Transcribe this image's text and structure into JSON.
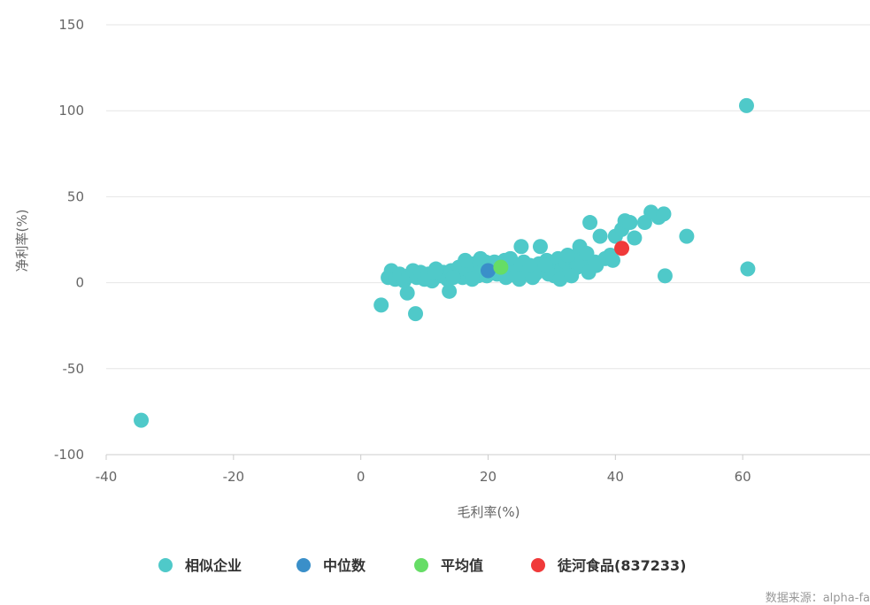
{
  "chart_data": {
    "type": "scatter",
    "xlabel": "毛利率(%)",
    "ylabel": "净利率(%)",
    "xlim": [
      -40,
      80
    ],
    "ylim": [
      -100,
      150
    ],
    "x_ticks": [
      -40,
      -20,
      0,
      20,
      40,
      60
    ],
    "y_ticks": [
      -100,
      -50,
      0,
      50,
      100,
      150
    ],
    "x_tick_labels": [
      "-40",
      "-20",
      "0",
      "20",
      "40",
      "60"
    ],
    "y_tick_labels": [
      "-100",
      "-50",
      "0",
      "50",
      "100",
      "150"
    ],
    "grid": "horizontal",
    "legend_position": "bottom",
    "series": [
      {
        "name": "相似企业",
        "color": "#4fc9c9",
        "points": [
          [
            -34.5,
            -80
          ],
          [
            3.2,
            -13
          ],
          [
            7.3,
            -6
          ],
          [
            8.6,
            -18
          ],
          [
            13.9,
            -5
          ],
          [
            4.3,
            3
          ],
          [
            4.8,
            7
          ],
          [
            5.4,
            2
          ],
          [
            6.1,
            5
          ],
          [
            6.8,
            1
          ],
          [
            7.5,
            4
          ],
          [
            8.2,
            7
          ],
          [
            8.8,
            3
          ],
          [
            9.4,
            6
          ],
          [
            10.0,
            2
          ],
          [
            10.6,
            5
          ],
          [
            11.2,
            1
          ],
          [
            11.8,
            8
          ],
          [
            12.4,
            4
          ],
          [
            13.0,
            6
          ],
          [
            13.6,
            2
          ],
          [
            14.2,
            7
          ],
          [
            14.8,
            5
          ],
          [
            15.4,
            9
          ],
          [
            16.0,
            3
          ],
          [
            16.6,
            8
          ],
          [
            17.2,
            6
          ],
          [
            17.8,
            11
          ],
          [
            18.4,
            4
          ],
          [
            19.0,
            9
          ],
          [
            19.6,
            12
          ],
          [
            20.2,
            7
          ],
          [
            20.8,
            10
          ],
          [
            21.4,
            5
          ],
          [
            22.0,
            8
          ],
          [
            22.6,
            13
          ],
          [
            23.2,
            6
          ],
          [
            23.8,
            10
          ],
          [
            24.4,
            4
          ],
          [
            25.0,
            8
          ],
          [
            25.2,
            21
          ],
          [
            25.6,
            12
          ],
          [
            26.2,
            6
          ],
          [
            26.8,
            9
          ],
          [
            27.4,
            5
          ],
          [
            28.0,
            11
          ],
          [
            28.2,
            21
          ],
          [
            28.6,
            7
          ],
          [
            29.2,
            13
          ],
          [
            29.8,
            9
          ],
          [
            30.4,
            4
          ],
          [
            31.0,
            14
          ],
          [
            31.6,
            8
          ],
          [
            32.2,
            12
          ],
          [
            32.8,
            6
          ],
          [
            33.4,
            15
          ],
          [
            34.0,
            9
          ],
          [
            34.4,
            21
          ],
          [
            34.8,
            13
          ],
          [
            35.5,
            17
          ],
          [
            36.0,
            35
          ],
          [
            36.8,
            12
          ],
          [
            37.6,
            27
          ],
          [
            38.4,
            14
          ],
          [
            39.2,
            16
          ],
          [
            40.0,
            27
          ],
          [
            41.0,
            31
          ],
          [
            41.5,
            36
          ],
          [
            42.3,
            35
          ],
          [
            43.0,
            26
          ],
          [
            44.6,
            35
          ],
          [
            45.6,
            41
          ],
          [
            46.8,
            38
          ],
          [
            47.6,
            40
          ],
          [
            47.8,
            4
          ],
          [
            51.2,
            27
          ],
          [
            60.6,
            103
          ],
          [
            60.8,
            8
          ],
          [
            11.6,
            6
          ],
          [
            14.5,
            3
          ],
          [
            17.5,
            2
          ],
          [
            19.8,
            4
          ],
          [
            22.8,
            3
          ],
          [
            24.9,
            2
          ],
          [
            27.0,
            3
          ],
          [
            29.5,
            5
          ],
          [
            31.3,
            2
          ],
          [
            33.1,
            4
          ],
          [
            16.4,
            13
          ],
          [
            18.8,
            14
          ],
          [
            21.0,
            12
          ],
          [
            23.5,
            14
          ],
          [
            26.6,
            10
          ],
          [
            29.0,
            10
          ],
          [
            32.5,
            16
          ],
          [
            35.8,
            6
          ],
          [
            37.0,
            10
          ],
          [
            39.6,
            13
          ]
        ]
      },
      {
        "name": "中位数",
        "color": "#3a8fc9",
        "points": [
          [
            20.0,
            7
          ]
        ]
      },
      {
        "name": "平均值",
        "color": "#66dd66",
        "points": [
          [
            22.0,
            9
          ]
        ]
      },
      {
        "name": "徒河食品(837233)",
        "color": "#f03a3a",
        "points": [
          [
            41.0,
            20
          ]
        ]
      }
    ],
    "source_text": "数据来源：alpha-fa"
  }
}
